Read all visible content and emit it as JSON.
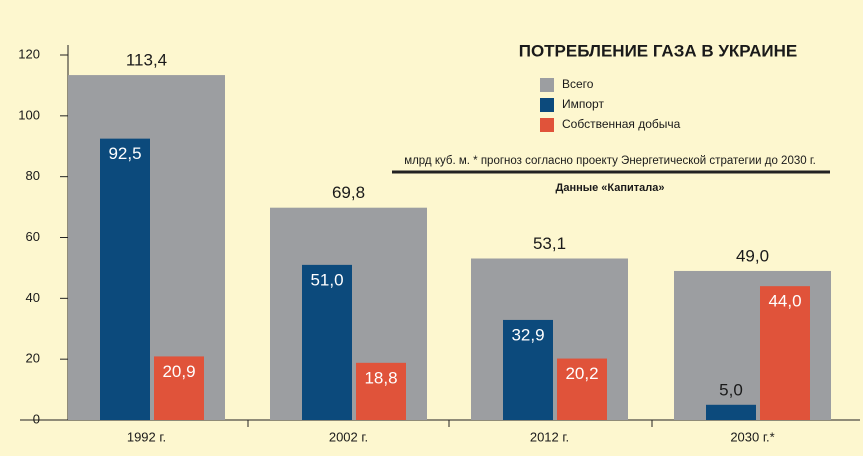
{
  "chart_data": {
    "type": "bar",
    "title": "ПОТРЕБЛЕНИЕ ГАЗА В УКРАИНЕ",
    "note": "млрд куб. м. * прогноз согласно проекту Энергетической стратегии до 2030 г.",
    "source": "Данные «Капитала»",
    "categories": [
      "1992 г.",
      "2002 г.",
      "2012 г.",
      "2030 г.*"
    ],
    "series": [
      {
        "name": "Всего",
        "color": "#9c9ea1",
        "values": [
          113.4,
          69.8,
          53.1,
          49.0
        ],
        "value_labels": [
          "113,4",
          "69,8",
          "53,1",
          "49,0"
        ]
      },
      {
        "name": "Импорт",
        "color": "#0c4a7c",
        "values": [
          92.5,
          51.0,
          32.9,
          5.0
        ],
        "value_labels": [
          "92,5",
          "51,0",
          "32,9",
          "5,0"
        ]
      },
      {
        "name": "Собственная добыча",
        "color": "#e0533a",
        "values": [
          20.9,
          18.8,
          20.2,
          44.0
        ],
        "value_labels": [
          "20,9",
          "18,8",
          "20,2",
          "44,0"
        ]
      }
    ],
    "ylim": [
      0,
      120
    ],
    "yticks": [
      0,
      20,
      40,
      60,
      80,
      100,
      120
    ]
  }
}
